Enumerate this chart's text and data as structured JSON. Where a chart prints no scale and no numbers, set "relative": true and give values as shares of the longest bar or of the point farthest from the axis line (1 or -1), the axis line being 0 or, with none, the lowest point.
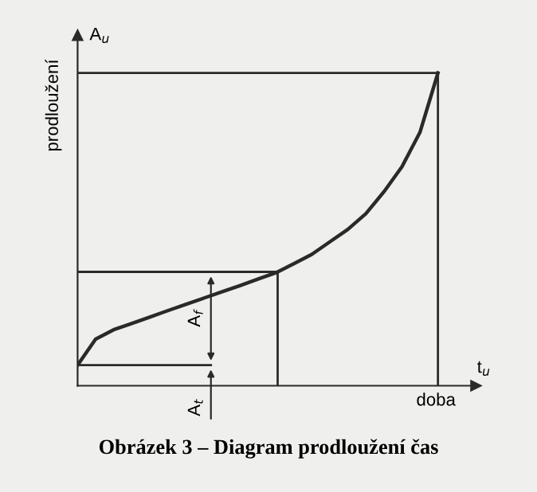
{
  "chart_data": {
    "type": "line",
    "relative": true,
    "title": "Obrázek 3 – Diagram prodloužení čas",
    "xlabel": "doba",
    "ylabel": "prodloužení",
    "legend": false,
    "marker": "none",
    "line_style": "solid",
    "categories": [
      null,
      null,
      null,
      null,
      null,
      null,
      null,
      null,
      null,
      null,
      null,
      null,
      null,
      null,
      null,
      null,
      null,
      null,
      null,
      null,
      null
    ],
    "series": [
      {
        "color": "#2a2a2a",
        "values": [
          0.066,
          0.149,
          0.179,
          0.199,
          0.219,
          0.24,
          0.26,
          0.28,
          0.3,
          0.32,
          0.341,
          0.361,
          0.39,
          0.42,
          0.46,
          0.5,
          0.55,
          0.62,
          0.7,
          0.81,
          1.0
        ]
      }
    ],
    "ref_lines": [
      {
        "axis": "y",
        "value": 1,
        "color": "#2a2a2a"
      },
      {
        "axis": "y",
        "value": 0.364,
        "color": "#2a2a2a"
      },
      {
        "axis": "y",
        "value": 0.066,
        "color": "#2a2a2a"
      }
    ],
    "annotations": [
      "A$_{u}$",
      "t$_{u}$",
      "A$_{f}$",
      "A$_{t}$"
    ]
  }
}
